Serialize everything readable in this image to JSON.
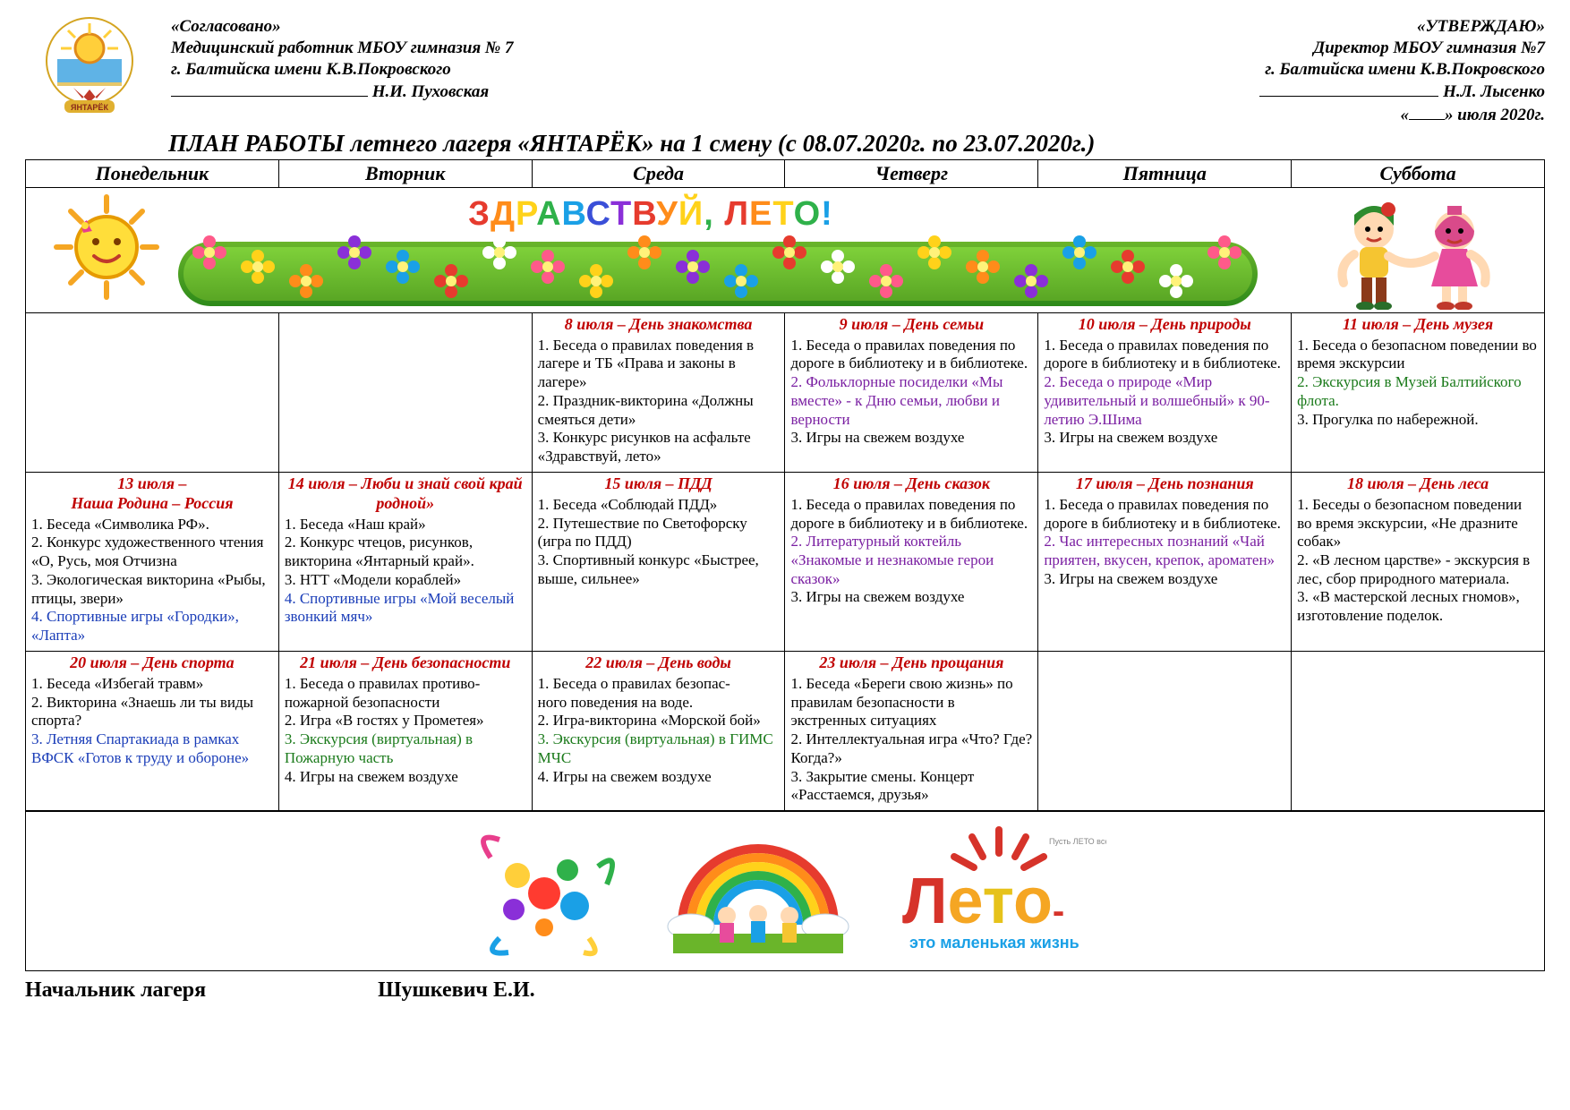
{
  "approval_left": {
    "line1": "«Согласовано»",
    "line2": "Медицинский работник МБОУ гимназия № 7",
    "line3": "г. Балтийска имени К.В.Покровского",
    "signer": "Н.И. Пуховская"
  },
  "approval_right": {
    "line1": "«УТВЕРЖДАЮ»",
    "line2": "Директор МБОУ гимназия №7",
    "line3": "г. Балтийска имени К.В.Покровского",
    "signer": "Н.Л. Лысенко",
    "date_suffix": "» июля 2020г."
  },
  "title": "ПЛАН РАБОТЫ  летнего лагеря «ЯНТАРЁК» на 1 смену  (с  08.07.2020г. по 23.07.2020г.)",
  "days": [
    "Понедельник",
    "Вторник",
    "Среда",
    "Четверг",
    "Пятница",
    "Суббота"
  ],
  "banner_headline_1": "ЗДРАВСТВУЙ,",
  "banner_headline_2": "ЛЕТО!",
  "banner_colors": [
    "#e63b2e",
    "#ff8c1a",
    "#ffd21a",
    "#2fb14a",
    "#1aa0e6",
    "#3a4fd8",
    "#8a2fd8"
  ],
  "tagline_small": "Пусть ЛЕТО всех одарит добрым светом!",
  "leto_word": "Лето",
  "leto_sub": "это маленькая жизнь",
  "footer_role": "Начальник лагеря",
  "footer_name": "Шушкевич Е.И.",
  "rows": [
    [
      null,
      null,
      {
        "title": "8 июля – День знакомства",
        "body": "1. Беседа о правилах поведения в лагере и ТБ «Права и законы в лагере»\n2. Праздник-викторина «Должны смеяться дети»\n3. Конкурс рисунков на асфальте «Здравствуй, лето»"
      },
      {
        "title": "9 июля – День семьи",
        "body": "1. Беседа о правилах поведения по дороге в библиотеку и в библиотеке.\n<span class=\"hl-purple\">2. Фольклорные посиделки «Мы вместе» - к Дню семьи, любви и верности</span>\n3. Игры на свежем воздухе"
      },
      {
        "title": "10 июля – День природы",
        "body": "1. Беседа о правилах поведения по дороге в библиотеку и в библиотеке.\n<span class=\"hl-purple\">2. Беседа о природе «Мир удивительный и волшебный» к 90-летию Э.Шима</span>\n3. Игры на свежем воздухе"
      },
      {
        "title": "11 июля – День музея",
        "body": "1. Беседа о безопасном поведении во время экскурсии\n<span class=\"hl-green\">2. Экскурсия в Музей Балтийского флота.</span>\n3. Прогулка по набережной."
      }
    ],
    [
      {
        "title": "13 июля –\nНаша Родина – Россия",
        "body": "1. Беседа «Символика РФ».\n2. Конкурс художественного чтения «О, Русь, моя Отчизна\n3. Экологическая викторина «Рыбы, птицы, звери»\n<span class=\"hl-blue\">4. Спортивные игры «Городки», «Лапта»</span>"
      },
      {
        "title": "14 июля – Люби и знай свой край родной»",
        "body": "1. Беседа «Наш край»\n2. Конкурс чтецов, рисунков, викторина «Янтарный край».\n3. НТТ «Модели кораблей»\n<span class=\"hl-blue\">4. Спортивные игры «Мой веселый звонкий мяч»</span>"
      },
      {
        "title": "15 июля – ПДД",
        "body": "1. Беседа «Соблюдай ПДД»\n2. Путешествие по Светофорску (игра по ПДД)\n3. Спортивный конкурс «Быстрее, выше, сильнее»"
      },
      {
        "title": "16 июля – День сказок",
        "body": "1. Беседа о правилах поведения по дороге в библиотеку и в библиотеке.\n<span class=\"hl-purple\">2. Литературный коктейль «Знакомые и незнакомые герои сказок»</span>\n3. Игры на свежем воздухе"
      },
      {
        "title": "17 июля – День познания",
        "body": "1. Беседа о правилах поведения по дороге в библиотеку и в библиотеке.\n<span class=\"hl-purple\">2. Час интересных познаний «Чай приятен, вкусен, крепок, ароматен»</span>\n3. Игры на свежем воздухе"
      },
      {
        "title": "18 июля – День леса",
        "body": "1. Беседы о безопасном поведении во время экскурсии, «Не дразните собак»\n2. «В лесном царстве» - экскурсия в лес, сбор природного материала.\n3. «В мастерской лесных гномов», изготовление поделок."
      }
    ],
    [
      {
        "title": "20 июля – День спорта",
        "body": "1. Беседа «Избегай травм»\n2. Викторина «Знаешь ли ты виды спорта?\n<span class=\"hl-blue\">3. Летняя Спартакиада в рамках ВФСК «Готов к труду и обороне»</span>"
      },
      {
        "title": "21 июля – День безопасности",
        "body": "1. Беседа о правилах противо-\nпожарной безопасности\n2. Игра «В гостях у Прометея»\n<span class=\"hl-green\">3. Экскурсия (виртуальная) в Пожарную часть</span>\n4. Игры на свежем воздухе"
      },
      {
        "title": "22 июля – День воды",
        "body": "1. Беседа о правилах безопас-\nного поведения на воде.\n2. Игра-викторина «Морской бой»\n<span class=\"hl-green\">3. Экскурсия (виртуальная) в ГИМС МЧС</span>\n4. Игры на свежем воздухе"
      },
      {
        "title": "23 июля – День прощания",
        "body": "1. Беседа «Береги свою жизнь» по правилам безопасности в экстренных ситуациях\n2. Интеллектуальная игра «Что? Где? Когда?»\n3. Закрытие смены. Концерт «Расстаемся, друзья»"
      },
      null,
      null
    ]
  ],
  "style": {
    "page_bg": "#ffffff",
    "border_color": "#000000",
    "title_color": "#c00000",
    "purple": "#7a1fa2",
    "green": "#1a7a1a",
    "blue": "#1a3db8",
    "font_body_pt": 13,
    "font_header_pt": 16,
    "font_title_pt": 20,
    "columns": 6
  }
}
